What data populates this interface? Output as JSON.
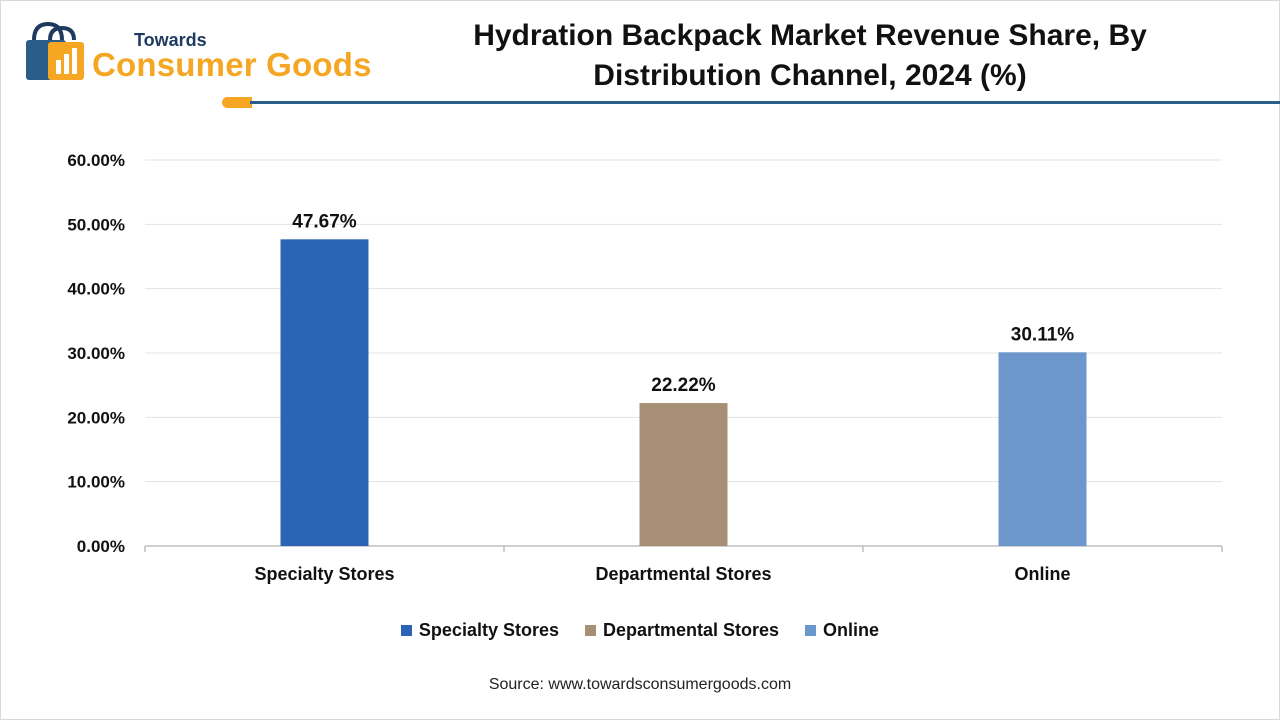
{
  "logo": {
    "top_text": "Towards",
    "brand_text": "Consumer Goods",
    "icon": "shopping-bag-icon",
    "colors": {
      "orange": "#f5a623",
      "navy": "#1f3a5f"
    }
  },
  "header": {
    "title": "Hydration Backpack Market  Revenue Share, By Distribution Channel, 2024 (%)",
    "rule_color": "#2a5d8a"
  },
  "chart_data": {
    "type": "bar",
    "categories": [
      "Specialty Stores",
      "Departmental Stores",
      "Online"
    ],
    "values": [
      47.67,
      22.22,
      30.11
    ],
    "data_labels": [
      "47.67%",
      "22.22%",
      "30.11%"
    ],
    "colors": [
      "#2b64b4",
      "#a68f74",
      "#6b97cc"
    ],
    "ylim": [
      0,
      60
    ],
    "yticks": [
      "0.00%",
      "10.00%",
      "20.00%",
      "30.00%",
      "40.00%",
      "50.00%",
      "60.00%"
    ],
    "grid": true,
    "legend_position": "bottom",
    "legend": [
      "Specialty Stores",
      "Departmental Stores",
      "Online"
    ]
  },
  "footer": {
    "source": "Source: www.towardsconsumergoods.com"
  }
}
